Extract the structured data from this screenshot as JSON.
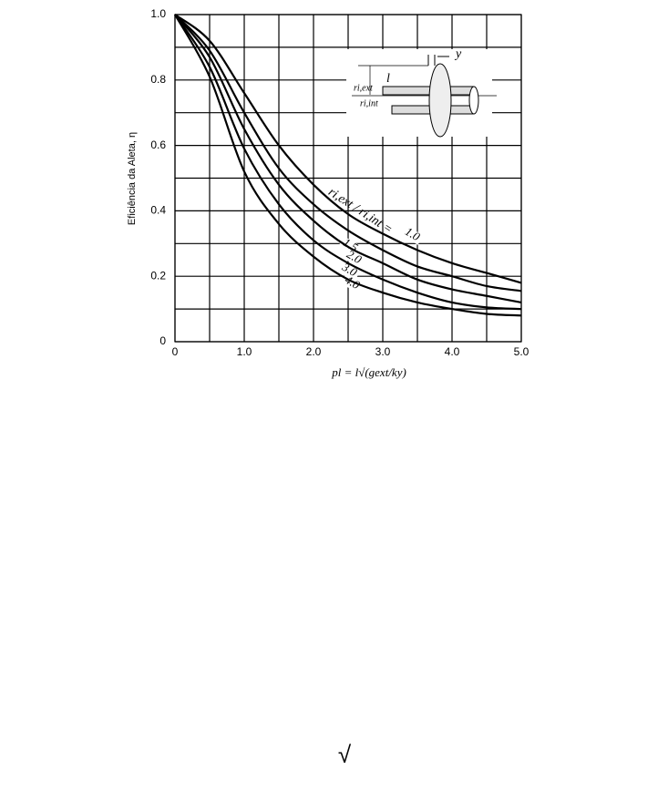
{
  "chart_data": {
    "type": "line",
    "y_label": "Eficiência da Aleta, η",
    "x_label": "pl = l√(gext/ky)",
    "curve_label": "ri,ext / ri,int =",
    "x": [
      0,
      0.5,
      1,
      1.5,
      2,
      2.5,
      3,
      3.5,
      4,
      4.5,
      5
    ],
    "series": [
      {
        "name": "1.0",
        "color": "#000000",
        "values": [
          1,
          0.92,
          0.76,
          0.6,
          0.48,
          0.39,
          0.33,
          0.28,
          0.24,
          0.21,
          0.18
        ]
      },
      {
        "name": "1.5",
        "color": "#000000",
        "values": [
          1,
          0.89,
          0.7,
          0.53,
          0.42,
          0.34,
          0.28,
          0.23,
          0.2,
          0.17,
          0.155
        ]
      },
      {
        "name": "2.0",
        "color": "#000000",
        "values": [
          1,
          0.87,
          0.65,
          0.48,
          0.37,
          0.29,
          0.24,
          0.19,
          0.16,
          0.14,
          0.12
        ]
      },
      {
        "name": "3.0",
        "color": "#000000",
        "values": [
          1,
          0.84,
          0.59,
          0.42,
          0.31,
          0.24,
          0.19,
          0.15,
          0.12,
          0.105,
          0.1
        ]
      },
      {
        "name": "4.0",
        "color": "#000000",
        "values": [
          1,
          0.81,
          0.52,
          0.36,
          0.26,
          0.19,
          0.15,
          0.12,
          0.1,
          0.085,
          0.08
        ]
      }
    ],
    "xlim": [
      0,
      5
    ],
    "ylim": [
      0,
      1
    ],
    "xticks": [
      0,
      {
        "value": 1,
        "label": "1.0"
      },
      {
        "value": 2,
        "label": "2.0"
      },
      {
        "value": 3,
        "label": "3.0"
      },
      {
        "value": 4,
        "label": "4.0"
      },
      {
        "value": 5,
        "label": "5.0"
      }
    ],
    "yticks": [
      0,
      0.2,
      0.4,
      0.6,
      0.8,
      {
        "value": 1,
        "label": "1.0"
      }
    ],
    "xminorticks": [
      0.5,
      1.5,
      2.5,
      3.5,
      4.5
    ],
    "yminorticks": [
      0.1,
      0.3,
      0.5,
      0.7,
      0.9
    ],
    "grid": true,
    "inset_labels": {
      "thickness": "y",
      "length": "l",
      "outer_radius": "ri,ext",
      "inner_radius": "ri,int"
    }
  },
  "footer_symbol": "√"
}
